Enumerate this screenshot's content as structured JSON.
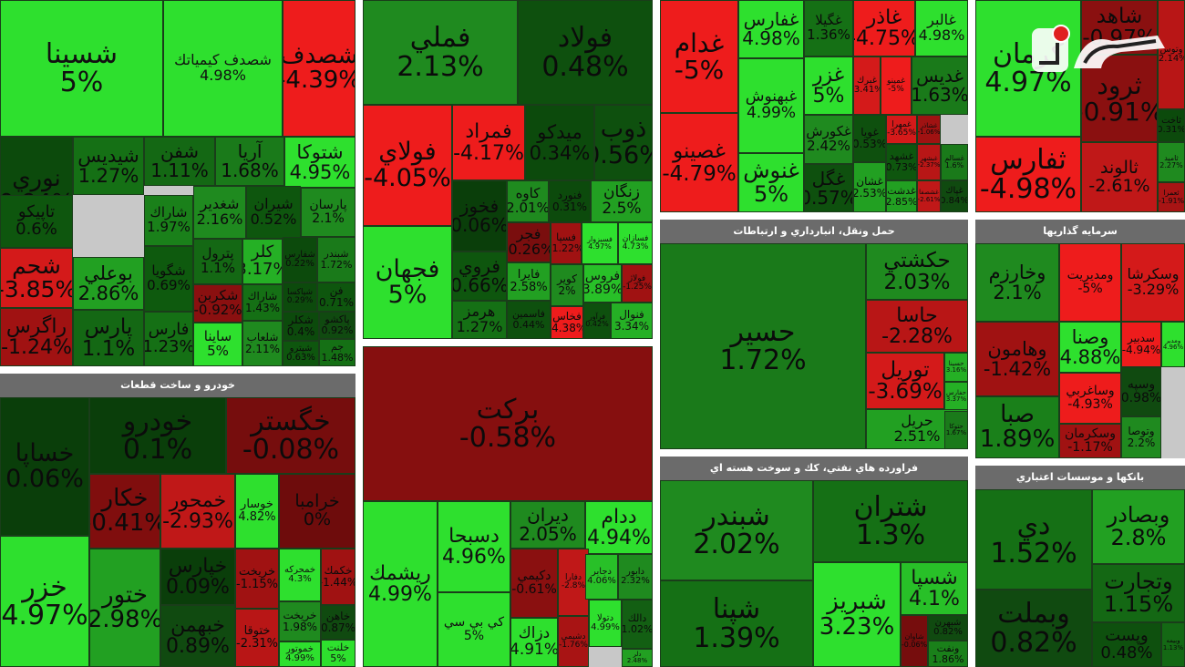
{
  "sectors": [
    {
      "id": "s1",
      "title": "",
      "tiles": [
        {
          "n": "شسينا",
          "p": "5%",
          "c": "#2ee02e"
        },
        {
          "n": "شصدف كيمياتك",
          "p": "4.98%",
          "c": "#2ee02e"
        },
        {
          "n": "شصدف",
          "p": "-4.39%",
          "c": "#ee1c1c"
        },
        {
          "n": "نوري",
          "p": "0.94%",
          "c": "#0c4a0c"
        },
        {
          "n": "شيديس",
          "p": "1.27%",
          "c": "#157015"
        },
        {
          "n": "شفن",
          "p": "1.11%",
          "c": "#146814"
        },
        {
          "n": "آريا",
          "p": "1.68%",
          "c": "#1a7a1a"
        },
        {
          "n": "شتوكا",
          "p": "4.95%",
          "c": "#2ee02e"
        },
        {
          "n": "تاپيكو",
          "p": "0.6%",
          "c": "#0e560e"
        },
        {
          "n": "شاراك",
          "p": "1.97%",
          "c": "#1a801a"
        },
        {
          "n": "شغدير",
          "p": "2.16%",
          "c": "#1f8a1f"
        },
        {
          "n": "شيران",
          "p": "0.52%",
          "c": "#0e560e"
        },
        {
          "n": "پارسان",
          "p": "2.1%",
          "c": "#1f8a1f"
        },
        {
          "n": "شحم",
          "p": "-3.85%",
          "c": "#d41a1a"
        },
        {
          "n": "بوعلي",
          "p": "2.86%",
          "c": "#22a022"
        },
        {
          "n": "شگويا",
          "p": "0.69%",
          "c": "#0e5a0e"
        },
        {
          "n": "پترول",
          "p": "1.1%",
          "c": "#146814"
        },
        {
          "n": "كلر",
          "p": "3.17%",
          "c": "#25b025"
        },
        {
          "n": "شفارس",
          "p": "0.22%",
          "c": "#0c4a0c"
        },
        {
          "n": "شبندر",
          "p": "1.72%",
          "c": "#1a7a1a"
        },
        {
          "n": "شكربن",
          "p": "-0.92%",
          "c": "#8a1010"
        },
        {
          "n": "شاراك",
          "p": "1.43%",
          "c": "#157015"
        },
        {
          "n": "شپاكسا",
          "p": "0.29%",
          "c": "#0c4a0c"
        },
        {
          "n": "فن",
          "p": "0.71%",
          "c": "#0e560e"
        },
        {
          "n": "راگرس",
          "p": "-1.24%",
          "c": "#a01212"
        },
        {
          "n": "پارس",
          "p": "1.1%",
          "c": "#146814"
        },
        {
          "n": "فارس",
          "p": "1.23%",
          "c": "#157015"
        },
        {
          "n": "ساينا",
          "p": "5%",
          "c": "#2ee02e"
        },
        {
          "n": "شلعاب",
          "p": "2.11%",
          "c": "#1f8a1f"
        },
        {
          "n": "شكلر",
          "p": "0.4%",
          "c": "#0c4a0c"
        },
        {
          "n": "شپترو",
          "p": "0.63%",
          "c": "#0e560e"
        },
        {
          "n": "پاكشو",
          "p": "0.92%",
          "c": "#104a10"
        },
        {
          "n": "جم",
          "p": "1.48%",
          "c": "#157015"
        }
      ]
    },
    {
      "id": "s2",
      "title": "",
      "tiles": [
        {
          "n": "فملي",
          "p": "2.13%",
          "c": "#1f8a1f"
        },
        {
          "n": "فولاد",
          "p": "0.48%",
          "c": "#0e500e"
        },
        {
          "n": "فولاي",
          "p": "-4.05%",
          "c": "#ee1c1c"
        },
        {
          "n": "فمراد",
          "p": "-4.17%",
          "c": "#ee1c1c"
        },
        {
          "n": "ميدكو",
          "p": "0.34%",
          "c": "#0c4a0c"
        },
        {
          "n": "ذوب",
          "p": "0.56%",
          "c": "#0e500e"
        },
        {
          "n": "فخوز",
          "p": "0.06%",
          "c": "#0a3e0a"
        },
        {
          "n": "كاوه",
          "p": "2.01%",
          "c": "#1f8a1f"
        },
        {
          "n": "فنورد",
          "p": "0.31%",
          "c": "#0c4a0c"
        },
        {
          "n": "زنگان",
          "p": "2.5%",
          "c": "#22a022"
        },
        {
          "n": "فجهان",
          "p": "5%",
          "c": "#2ee02e"
        },
        {
          "n": "فروي",
          "p": "0.66%",
          "c": "#0e560e"
        },
        {
          "n": "فجر",
          "p": "-0.26%",
          "c": "#7a0e0e"
        },
        {
          "n": "فسپا",
          "p": "-1.22%",
          "c": "#a01212"
        },
        {
          "n": "فسبزوار",
          "p": "4.97%",
          "c": "#2ee02e"
        },
        {
          "n": "فسازان",
          "p": "4.73%",
          "c": "#2ee02e"
        },
        {
          "n": "فايرا",
          "p": "2.58%",
          "c": "#22a022"
        },
        {
          "n": "كوير",
          "p": "2%",
          "c": "#1f8a1f"
        },
        {
          "n": "فروس",
          "p": "3.89%",
          "c": "#28c028"
        },
        {
          "n": "فولاژ",
          "p": "-1.25%",
          "c": "#a01212"
        },
        {
          "n": "هرمز",
          "p": "1.27%",
          "c": "#157015"
        },
        {
          "n": "فاسمين",
          "p": "0.44%",
          "c": "#0e500e"
        },
        {
          "n": "فخاس",
          "p": "-4.38%",
          "c": "#ee1c1c"
        },
        {
          "n": "فرآور",
          "p": "0.42%",
          "c": "#0e500e"
        },
        {
          "n": "فنوال",
          "p": "3.34%",
          "c": "#25b025"
        }
      ]
    },
    {
      "id": "s3",
      "title": "مواد و محصولات دارويي",
      "tiles": [
        {
          "n": "بركت",
          "p": "-0.58%",
          "c": "#860f0f"
        },
        {
          "n": "ريشمك",
          "p": "4.99%",
          "c": "#2ee02e"
        },
        {
          "n": "دسبحا",
          "p": "4.96%",
          "c": "#2ee02e"
        },
        {
          "n": "ديران",
          "p": "2.05%",
          "c": "#1f8a1f"
        },
        {
          "n": "ددام",
          "p": "4.94%",
          "c": "#2ee02e"
        },
        {
          "n": "كي بي سي",
          "p": "5%",
          "c": "#2ee02e"
        },
        {
          "n": "دكيمي",
          "p": "-0.61%",
          "c": "#8a1010"
        },
        {
          "n": "دفارا",
          "p": "-2.8%",
          "c": "#c01818"
        },
        {
          "n": "دجابر",
          "p": "4.06%",
          "c": "#28c028"
        },
        {
          "n": "دابور",
          "p": "2.32%",
          "c": "#1f8a1f"
        },
        {
          "n": "دزاك",
          "p": "4.91%",
          "c": "#2ee02e"
        },
        {
          "n": "دشيمي",
          "p": "-1.76%",
          "c": "#a81414"
        },
        {
          "n": "دتولا",
          "p": "4.99%",
          "c": "#2ee02e"
        },
        {
          "n": "دالك",
          "p": "1.02%",
          "c": "#135f13"
        },
        {
          "n": "دلر",
          "p": "2.48%",
          "c": "#22a022"
        }
      ]
    },
    {
      "id": "s4",
      "title": "",
      "tiles": [
        {
          "n": "غدام",
          "p": "-5%",
          "c": "#ee1c1c"
        },
        {
          "n": "غفارس",
          "p": "4.98%",
          "c": "#2ee02e"
        },
        {
          "n": "غگيلا",
          "p": "1.36%",
          "c": "#157015"
        },
        {
          "n": "غاذر",
          "p": "-4.75%",
          "c": "#ee1c1c"
        },
        {
          "n": "غالبر",
          "p": "4.98%",
          "c": "#2ee02e"
        },
        {
          "n": "غبهنوش",
          "p": "4.99%",
          "c": "#2ee02e"
        },
        {
          "n": "غزر",
          "p": "5%",
          "c": "#2ee02e"
        },
        {
          "n": "غبرك",
          "p": "-3.41%",
          "c": "#d41a1a"
        },
        {
          "n": "غمينو",
          "p": "-5%",
          "c": "#ee1c1c"
        },
        {
          "n": "غديس",
          "p": "1.63%",
          "c": "#1a7a1a"
        },
        {
          "n": "غصينو",
          "p": "-4.79%",
          "c": "#ee1c1c"
        },
        {
          "n": "غكورش",
          "p": "2.42%",
          "c": "#1f8a1f"
        },
        {
          "n": "غويا",
          "p": "0.53%",
          "c": "#0e500e"
        },
        {
          "n": "غمهرا",
          "p": "-3.65%",
          "c": "#d41a1a"
        },
        {
          "n": "غشاذر",
          "p": "-1.06%",
          "c": "#a01212"
        },
        {
          "n": "غنوش",
          "p": "5%",
          "c": "#2ee02e"
        },
        {
          "n": "غگل",
          "p": "0.57%",
          "c": "#0e500e"
        },
        {
          "n": "غشان",
          "p": "2.53%",
          "c": "#22a022"
        },
        {
          "n": "غشهد",
          "p": "0.73%",
          "c": "#0e560e"
        },
        {
          "n": "غبشهر",
          "p": "-2.37%",
          "c": "#b81616"
        },
        {
          "n": "غسالم",
          "p": "1.6%",
          "c": "#1a7a1a"
        },
        {
          "n": "غدشت",
          "p": "2.85%",
          "c": "#22a022"
        },
        {
          "n": "غشصفا",
          "p": "-2.61%",
          "c": "#c01818"
        },
        {
          "n": "غپاك",
          "p": "0.84%",
          "c": "#104a10"
        }
      ]
    },
    {
      "id": "s5",
      "title": "",
      "tiles": [
        {
          "n": "كرمان",
          "p": "4.97%",
          "c": "#2ee02e"
        },
        {
          "n": "شاهد",
          "p": "-0.97%",
          "c": "#8a1010"
        },
        {
          "n": "وتوس",
          "p": "-2.14%",
          "c": "#b81616"
        },
        {
          "n": "ثرود",
          "p": "-0.91%",
          "c": "#8a1010"
        },
        {
          "n": "ثاخت",
          "p": "0.31%",
          "c": "#0c4a0c"
        },
        {
          "n": "ثفارس",
          "p": "-4.98%",
          "c": "#ee1c1c"
        },
        {
          "n": "ثالوند",
          "p": "-2.61%",
          "c": "#c01818"
        },
        {
          "n": "ثاميد",
          "p": "2.27%",
          "c": "#1f8a1f"
        },
        {
          "n": "ثعمرا",
          "p": "-1.91%",
          "c": "#a81414"
        }
      ]
    },
    {
      "id": "s6",
      "title": "حمل ونقل، انبارداري و ارتباطات",
      "tiles": [
        {
          "n": "حسير",
          "p": "1.72%",
          "c": "#1a7a1a"
        },
        {
          "n": "حكشتي",
          "p": "2.03%",
          "c": "#1f8a1f"
        },
        {
          "n": "حاسا",
          "p": "-2.28%",
          "c": "#b81616"
        },
        {
          "n": "حسينا",
          "p": "3.16%",
          "c": "#25b025"
        },
        {
          "n": "توريل",
          "p": "-3.69%",
          "c": "#d41a1a"
        },
        {
          "n": "حفارس",
          "p": "3.37%",
          "c": "#25b025"
        },
        {
          "n": "حريل",
          "p": "2.51%",
          "c": "#22a022"
        },
        {
          "n": "حتوكا",
          "p": "1.67%",
          "c": "#1a7a1a"
        }
      ]
    },
    {
      "id": "s7",
      "title": "سرمايه گذاريها",
      "tiles": [
        {
          "n": "وخارزم",
          "p": "2.1%",
          "c": "#1f8a1f"
        },
        {
          "n": "ومديريت",
          "p": "-5%",
          "c": "#ee1c1c"
        },
        {
          "n": "وسكرشا",
          "p": "-3.29%",
          "c": "#d41a1a"
        },
        {
          "n": "وهامون",
          "p": "-1.42%",
          "c": "#a01212"
        },
        {
          "n": "وصنا",
          "p": "4.88%",
          "c": "#2ee02e"
        },
        {
          "n": "سدبير",
          "p": "-4.94%",
          "c": "#ee1c1c"
        },
        {
          "n": "ومدير",
          "p": "4.96%",
          "c": "#2ee02e"
        },
        {
          "n": "صبا",
          "p": "1.89%",
          "c": "#1a801a"
        },
        {
          "n": "وساغربي",
          "p": "-4.93%",
          "c": "#ee1c1c"
        },
        {
          "n": "وسپه",
          "p": "0.98%",
          "c": "#104a10"
        },
        {
          "n": "وسكرمان",
          "p": "-1.17%",
          "c": "#a01212"
        },
        {
          "n": "وتوصا",
          "p": "2.2%",
          "c": "#1f8a1f"
        }
      ]
    },
    {
      "id": "s8",
      "title": "خودرو و ساخت قطعات",
      "tiles": [
        {
          "n": "خساپا",
          "p": "0.06%",
          "c": "#0a3e0a"
        },
        {
          "n": "خودرو",
          "p": "0.1%",
          "c": "#0a3e0a"
        },
        {
          "n": "خگستر",
          "p": "-0.08%",
          "c": "#760d0d"
        },
        {
          "n": "خزر",
          "p": "4.97%",
          "c": "#2ee02e"
        },
        {
          "n": "خكار",
          "p": "-0.41%",
          "c": "#800e0e"
        },
        {
          "n": "خمحور",
          "p": "-2.93%",
          "c": "#c01818"
        },
        {
          "n": "خوسار",
          "p": "4.82%",
          "c": "#2ee02e"
        },
        {
          "n": "خرامبا",
          "p": "0%",
          "c": "#6e0c0c"
        },
        {
          "n": "ختور",
          "p": "2.98%",
          "c": "#22a022"
        },
        {
          "n": "خپارس",
          "p": "0.09%",
          "c": "#0a3e0a"
        },
        {
          "n": "خريخت",
          "p": "-1.15%",
          "c": "#a01212"
        },
        {
          "n": "خمحركه",
          "p": "4.3%",
          "c": "#2ee02e"
        },
        {
          "n": "خكمك",
          "p": "-1.44%",
          "c": "#a01212"
        },
        {
          "n": "خبهمن",
          "p": "0.89%",
          "c": "#104a10"
        },
        {
          "n": "ختوقا",
          "p": "-2.31%",
          "c": "#b81616"
        },
        {
          "n": "خريخت",
          "p": "1.98%",
          "c": "#1f8a1f"
        },
        {
          "n": "خاهن",
          "p": "0.87%",
          "c": "#104a10"
        },
        {
          "n": "خموتور",
          "p": "4.99%",
          "c": "#2ee02e"
        },
        {
          "n": "خلنت",
          "p": "5%",
          "c": "#2ee02e"
        }
      ]
    },
    {
      "id": "s9",
      "title": "فراورده هاي نفتي، كك و سوخت هسته اي",
      "tiles": [
        {
          "n": "شبندر",
          "p": "2.02%",
          "c": "#1f8a1f"
        },
        {
          "n": "شتران",
          "p": "1.3%",
          "c": "#157015"
        },
        {
          "n": "شپنا",
          "p": "1.39%",
          "c": "#157015"
        },
        {
          "n": "شبريز",
          "p": "3.23%",
          "c": "#2ee02e"
        },
        {
          "n": "شسپا",
          "p": "4.1%",
          "c": "#28c028"
        },
        {
          "n": "شاوان",
          "p": "-0.06%",
          "c": "#760d0d"
        },
        {
          "n": "شبهرن",
          "p": "0.82%",
          "c": "#104a10"
        },
        {
          "n": "ونفت",
          "p": "1.86%",
          "c": "#1a801a"
        }
      ]
    },
    {
      "id": "s10",
      "title": "بانكها و موسسات اعتباري",
      "tiles": [
        {
          "n": "دي",
          "p": "1.52%",
          "c": "#157015"
        },
        {
          "n": "وبصادر",
          "p": "2.8%",
          "c": "#22a022"
        },
        {
          "n": "وتجارت",
          "p": "1.15%",
          "c": "#146814"
        },
        {
          "n": "وبملت",
          "p": "0.82%",
          "c": "#104a10"
        },
        {
          "n": "وبيمه",
          "p": "1.13%",
          "c": "#146814"
        },
        {
          "n": "وپست",
          "p": "0.48%",
          "c": "#0e500e"
        }
      ]
    }
  ]
}
